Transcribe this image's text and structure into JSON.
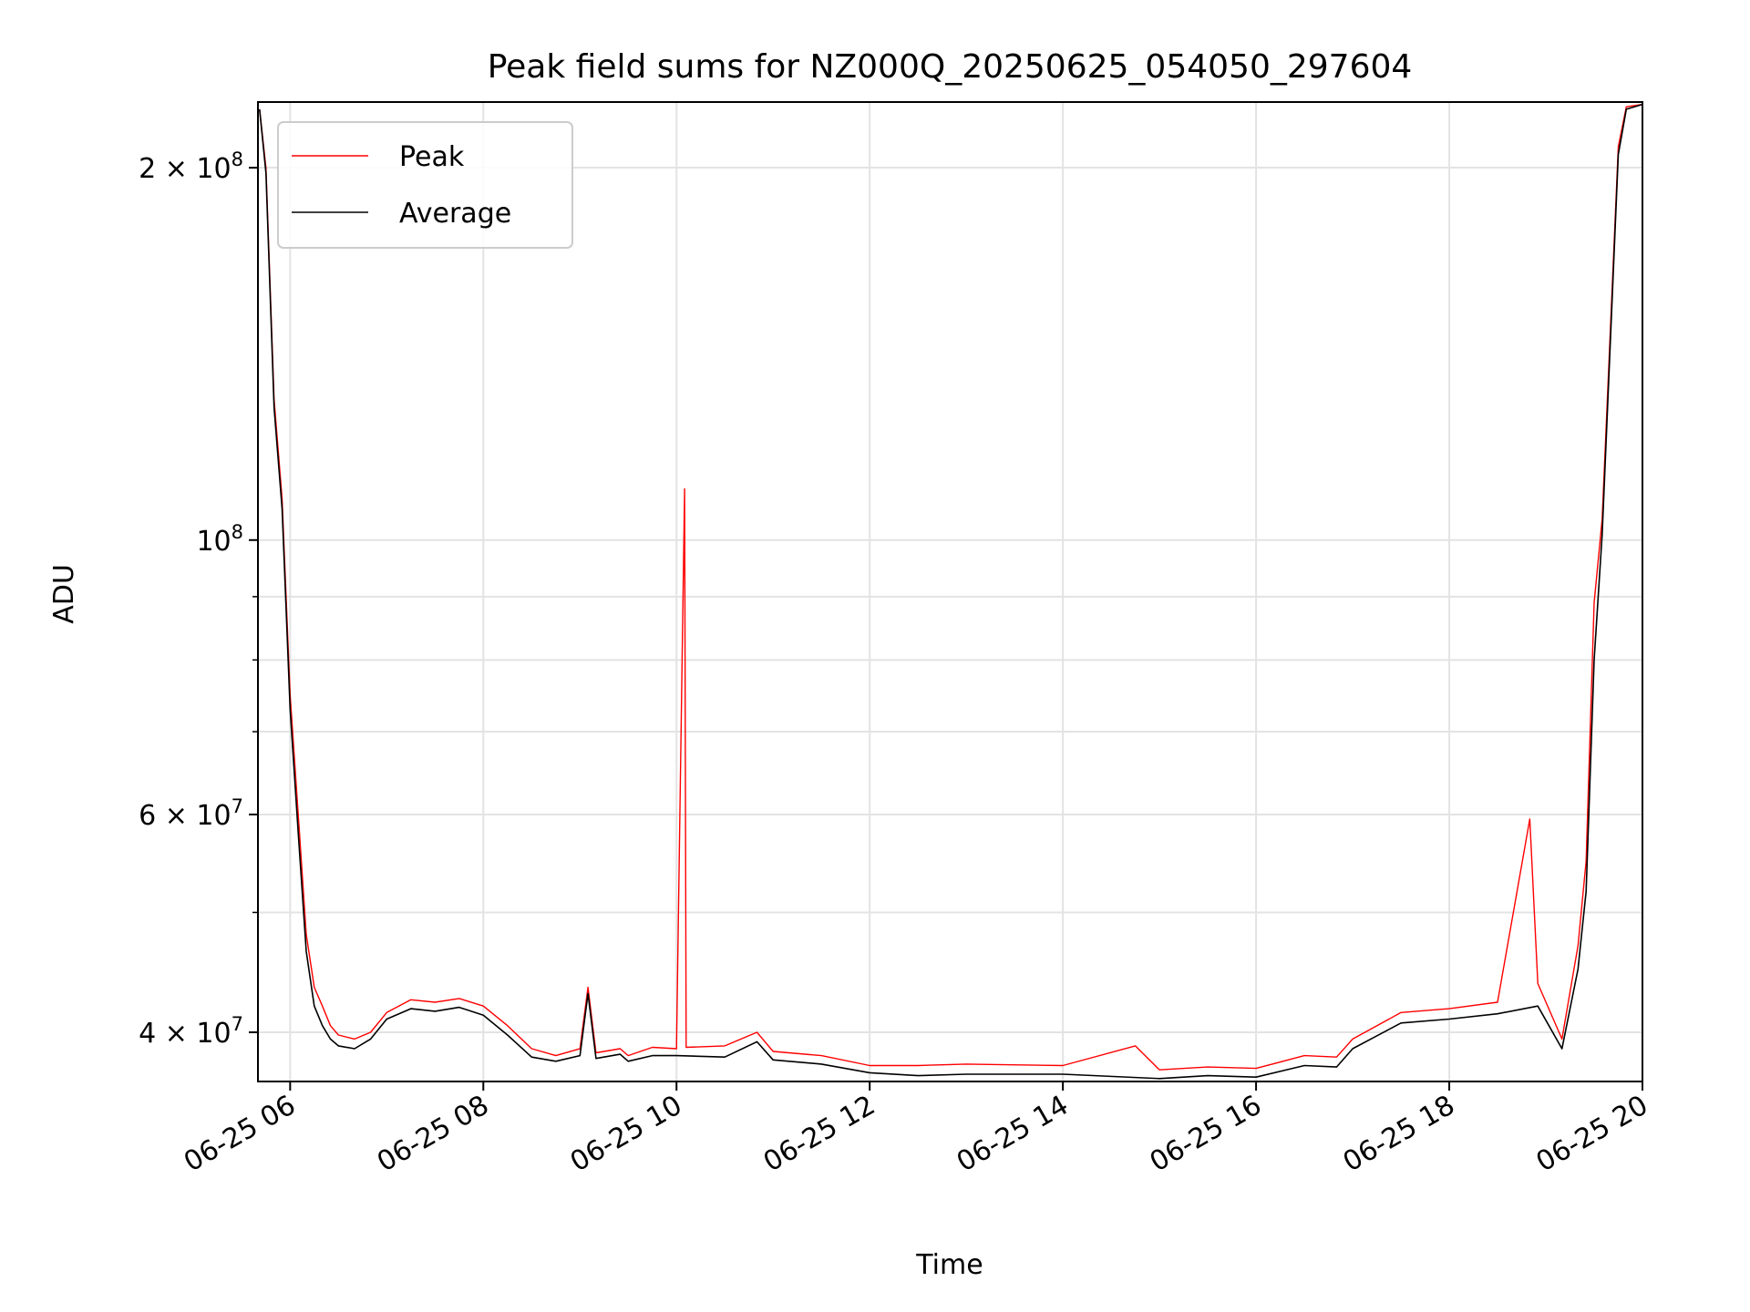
{
  "chart_data": {
    "type": "line",
    "title": "Peak field sums for NZ000Q_20250625_054050_297604",
    "xlabel": "Time",
    "ylabel": "ADU",
    "y_scale": "log",
    "ylim": [
      36500000,
      226000000
    ],
    "xlim": [
      "2025-06-25 05:40",
      "2025-06-25 20:00"
    ],
    "x_ticks": [
      {
        "at": "2025-06-25 06:00",
        "label": "06-25 06"
      },
      {
        "at": "2025-06-25 08:00",
        "label": "06-25 08"
      },
      {
        "at": "2025-06-25 10:00",
        "label": "06-25 10"
      },
      {
        "at": "2025-06-25 12:00",
        "label": "06-25 12"
      },
      {
        "at": "2025-06-25 14:00",
        "label": "06-25 14"
      },
      {
        "at": "2025-06-25 16:00",
        "label": "06-25 16"
      },
      {
        "at": "2025-06-25 18:00",
        "label": "06-25 18"
      },
      {
        "at": "2025-06-25 20:00",
        "label": "06-25 20"
      }
    ],
    "y_ticks_major": [
      {
        "value": 40000000,
        "base": "4",
        "exp": "7"
      },
      {
        "value": 60000000,
        "base": "6",
        "exp": "7"
      },
      {
        "value": 100000000,
        "base": "",
        "exp": "8"
      },
      {
        "value": 200000000,
        "base": "2",
        "exp": "8"
      }
    ],
    "y_ticks_minor": [
      50000000,
      70000000,
      80000000,
      90000000
    ],
    "grid": true,
    "legend": {
      "placement": "upper-left"
    },
    "series": [
      {
        "name": "Peak",
        "color": "#ff0000",
        "points": [
          [
            "2025-06-25 05:41",
            223000000
          ],
          [
            "2025-06-25 05:45",
            200000000
          ],
          [
            "2025-06-25 05:50",
            130000000
          ],
          [
            "2025-06-25 05:55",
            108000000
          ],
          [
            "2025-06-25 06:00",
            75000000
          ],
          [
            "2025-06-25 06:05",
            60000000
          ],
          [
            "2025-06-25 06:10",
            48000000
          ],
          [
            "2025-06-25 06:15",
            43500000
          ],
          [
            "2025-06-25 06:20",
            42000000
          ],
          [
            "2025-06-25 06:25",
            40500000
          ],
          [
            "2025-06-25 06:30",
            39800000
          ],
          [
            "2025-06-25 06:40",
            39500000
          ],
          [
            "2025-06-25 06:50",
            40000000
          ],
          [
            "2025-06-25 07:00",
            41500000
          ],
          [
            "2025-06-25 07:15",
            42500000
          ],
          [
            "2025-06-25 07:30",
            42300000
          ],
          [
            "2025-06-25 07:45",
            42600000
          ],
          [
            "2025-06-25 08:00",
            42000000
          ],
          [
            "2025-06-25 08:15",
            40500000
          ],
          [
            "2025-06-25 08:30",
            38800000
          ],
          [
            "2025-06-25 08:45",
            38300000
          ],
          [
            "2025-06-25 09:00",
            38800000
          ],
          [
            "2025-06-25 09:05",
            43500000
          ],
          [
            "2025-06-25 09:10",
            38500000
          ],
          [
            "2025-06-25 09:25",
            38800000
          ],
          [
            "2025-06-25 09:30",
            38300000
          ],
          [
            "2025-06-25 09:45",
            38900000
          ],
          [
            "2025-06-25 10:00",
            38800000
          ],
          [
            "2025-06-25 10:05",
            110000000
          ],
          [
            "2025-06-25 10:06",
            38900000
          ],
          [
            "2025-06-25 10:30",
            39000000
          ],
          [
            "2025-06-25 10:50",
            40000000
          ],
          [
            "2025-06-25 11:00",
            38600000
          ],
          [
            "2025-06-25 11:30",
            38300000
          ],
          [
            "2025-06-25 12:00",
            37600000
          ],
          [
            "2025-06-25 12:30",
            37600000
          ],
          [
            "2025-06-25 13:00",
            37700000
          ],
          [
            "2025-06-25 14:00",
            37600000
          ],
          [
            "2025-06-25 14:45",
            39000000
          ],
          [
            "2025-06-25 15:00",
            37300000
          ],
          [
            "2025-06-25 15:30",
            37500000
          ],
          [
            "2025-06-25 16:00",
            37400000
          ],
          [
            "2025-06-25 16:30",
            38300000
          ],
          [
            "2025-06-25 16:50",
            38200000
          ],
          [
            "2025-06-25 17:00",
            39500000
          ],
          [
            "2025-06-25 17:30",
            41500000
          ],
          [
            "2025-06-25 18:00",
            41800000
          ],
          [
            "2025-06-25 18:30",
            42300000
          ],
          [
            "2025-06-25 18:50",
            59500000
          ],
          [
            "2025-06-25 18:55",
            43800000
          ],
          [
            "2025-06-25 19:10",
            39500000
          ],
          [
            "2025-06-25 19:20",
            47000000
          ],
          [
            "2025-06-25 19:25",
            55000000
          ],
          [
            "2025-06-25 19:30",
            89000000
          ],
          [
            "2025-06-25 19:35",
            104000000
          ],
          [
            "2025-06-25 19:45",
            208000000
          ],
          [
            "2025-06-25 19:50",
            224000000
          ],
          [
            "2025-06-25 20:00",
            225000000
          ]
        ]
      },
      {
        "name": "Average",
        "color": "#000000",
        "points": [
          [
            "2025-06-25 05:41",
            223000000
          ],
          [
            "2025-06-25 05:45",
            198000000
          ],
          [
            "2025-06-25 05:50",
            128000000
          ],
          [
            "2025-06-25 05:55",
            106000000
          ],
          [
            "2025-06-25 06:00",
            73000000
          ],
          [
            "2025-06-25 06:05",
            58000000
          ],
          [
            "2025-06-25 06:10",
            46500000
          ],
          [
            "2025-06-25 06:15",
            42000000
          ],
          [
            "2025-06-25 06:20",
            40500000
          ],
          [
            "2025-06-25 06:25",
            39500000
          ],
          [
            "2025-06-25 06:30",
            39000000
          ],
          [
            "2025-06-25 06:40",
            38800000
          ],
          [
            "2025-06-25 06:50",
            39500000
          ],
          [
            "2025-06-25 07:00",
            41000000
          ],
          [
            "2025-06-25 07:15",
            41800000
          ],
          [
            "2025-06-25 07:30",
            41600000
          ],
          [
            "2025-06-25 07:45",
            41900000
          ],
          [
            "2025-06-25 08:00",
            41300000
          ],
          [
            "2025-06-25 08:15",
            39800000
          ],
          [
            "2025-06-25 08:30",
            38200000
          ],
          [
            "2025-06-25 08:45",
            37900000
          ],
          [
            "2025-06-25 09:00",
            38300000
          ],
          [
            "2025-06-25 09:05",
            43000000
          ],
          [
            "2025-06-25 09:10",
            38100000
          ],
          [
            "2025-06-25 09:25",
            38400000
          ],
          [
            "2025-06-25 09:30",
            37900000
          ],
          [
            "2025-06-25 09:45",
            38300000
          ],
          [
            "2025-06-25 10:00",
            38300000
          ],
          [
            "2025-06-25 10:30",
            38200000
          ],
          [
            "2025-06-25 10:50",
            39300000
          ],
          [
            "2025-06-25 11:00",
            38000000
          ],
          [
            "2025-06-25 11:30",
            37700000
          ],
          [
            "2025-06-25 12:00",
            37100000
          ],
          [
            "2025-06-25 12:30",
            36900000
          ],
          [
            "2025-06-25 13:00",
            37000000
          ],
          [
            "2025-06-25 14:00",
            37000000
          ],
          [
            "2025-06-25 15:00",
            36700000
          ],
          [
            "2025-06-25 15:30",
            36900000
          ],
          [
            "2025-06-25 16:00",
            36800000
          ],
          [
            "2025-06-25 16:30",
            37600000
          ],
          [
            "2025-06-25 16:50",
            37500000
          ],
          [
            "2025-06-25 17:00",
            38800000
          ],
          [
            "2025-06-25 17:30",
            40700000
          ],
          [
            "2025-06-25 18:00",
            41000000
          ],
          [
            "2025-06-25 18:30",
            41400000
          ],
          [
            "2025-06-25 18:55",
            42000000
          ],
          [
            "2025-06-25 19:10",
            38800000
          ],
          [
            "2025-06-25 19:20",
            45000000
          ],
          [
            "2025-06-25 19:25",
            52000000
          ],
          [
            "2025-06-25 19:30",
            80000000
          ],
          [
            "2025-06-25 19:35",
            101000000
          ],
          [
            "2025-06-25 19:45",
            205000000
          ],
          [
            "2025-06-25 19:50",
            223000000
          ],
          [
            "2025-06-25 20:00",
            225000000
          ]
        ]
      }
    ]
  }
}
